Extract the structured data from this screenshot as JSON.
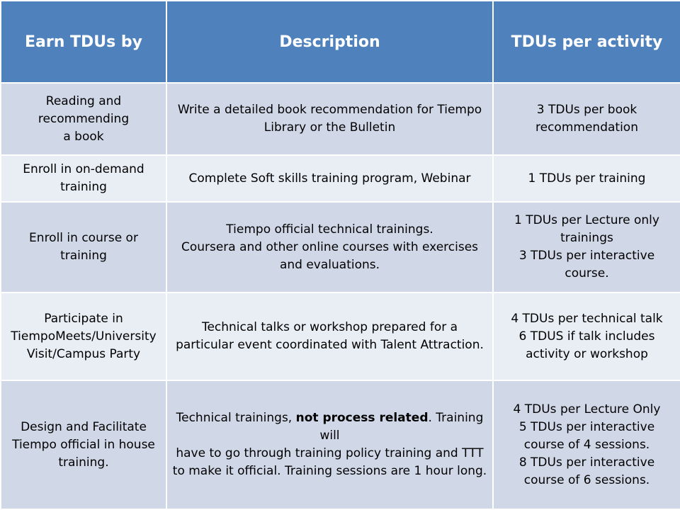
{
  "table": {
    "headers": [
      "Earn TDUs by",
      "Description",
      "TDUs per activity"
    ],
    "rows": [
      {
        "earn": [
          "Reading and",
          "recommending",
          "a book"
        ],
        "description": [
          "Write a detailed book recommendation for Tiempo",
          "Library or the Bulletin"
        ],
        "tdus": [
          "3 TDUs per book",
          "recommendation"
        ]
      },
      {
        "earn": [
          "Enroll in on-demand",
          "training"
        ],
        "description": [
          "Complete Soft skills training program, Webinar"
        ],
        "tdus": [
          "1 TDUs per training"
        ]
      },
      {
        "earn": [
          "Enroll in course or training"
        ],
        "description": [
          "Tiempo official technical trainings.",
          "Coursera and other online courses with exercises",
          "and evaluations."
        ],
        "tdus": [
          "1 TDUs per Lecture only",
          "trainings",
          "3 TDUs per interactive",
          "course."
        ]
      },
      {
        "earn": [
          "Participate in",
          "TiempoMeets/University",
          "Visit/Campus Party"
        ],
        "description": [
          "Technical talks or workshop prepared for a",
          "particular event coordinated with Talent Attraction."
        ],
        "tdus": [
          "4 TDUs per technical talk",
          "6 TDUS if talk includes",
          "activity or workshop"
        ]
      },
      {
        "earn": [
          "Design and Facilitate",
          "Tiempo official in house",
          "training."
        ],
        "description_pre": "Technical trainings, ",
        "description_bold": "not process related",
        "description_post": ". Training will",
        "description": [
          "have to go through training policy training and TTT",
          "to make it official. Training sessions are 1 hour long."
        ],
        "tdus": [
          "4 TDUs per Lecture Only",
          "5 TDUs per interactive",
          "course of 4 sessions.",
          "8 TDUs per interactive",
          "course of 6 sessions."
        ]
      }
    ]
  },
  "colors": {
    "header_bg": "#4f81bd",
    "row_dark": "#d0d8e8",
    "row_light": "#e9edf4"
  }
}
